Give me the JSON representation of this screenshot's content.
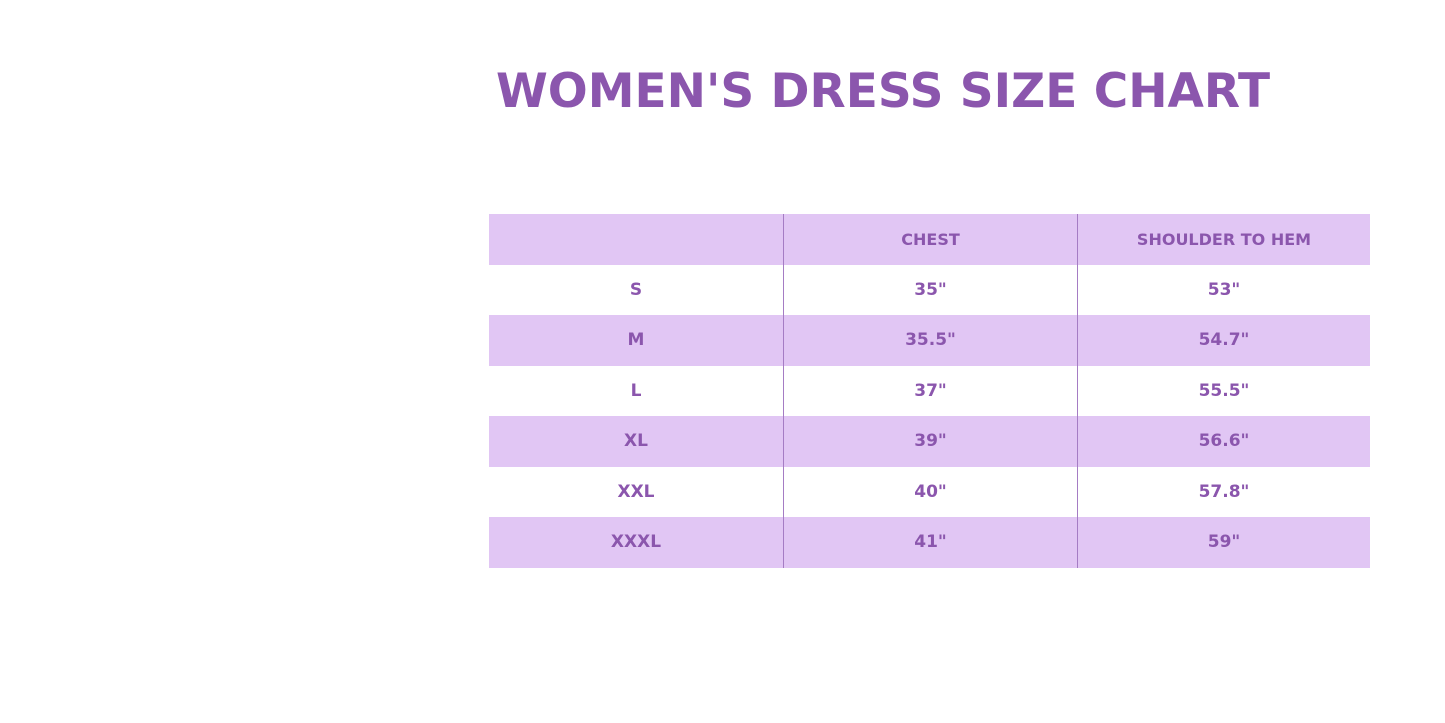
{
  "title": "WOMEN'S DRESS SIZE CHART",
  "colors": {
    "accent": "#8b56ad",
    "band": "#e1c6f4"
  },
  "table": {
    "headers": [
      "",
      "CHEST",
      "SHOULDER TO HEM"
    ],
    "rows": [
      [
        "S",
        "35\"",
        "53\""
      ],
      [
        "M",
        "35.5\"",
        "54.7\""
      ],
      [
        "L",
        "37\"",
        "55.5\""
      ],
      [
        "XL",
        "39\"",
        "56.6\""
      ],
      [
        "XXL",
        "40\"",
        "57.8\""
      ],
      [
        "XXXL",
        "41\"",
        "59\""
      ]
    ]
  }
}
